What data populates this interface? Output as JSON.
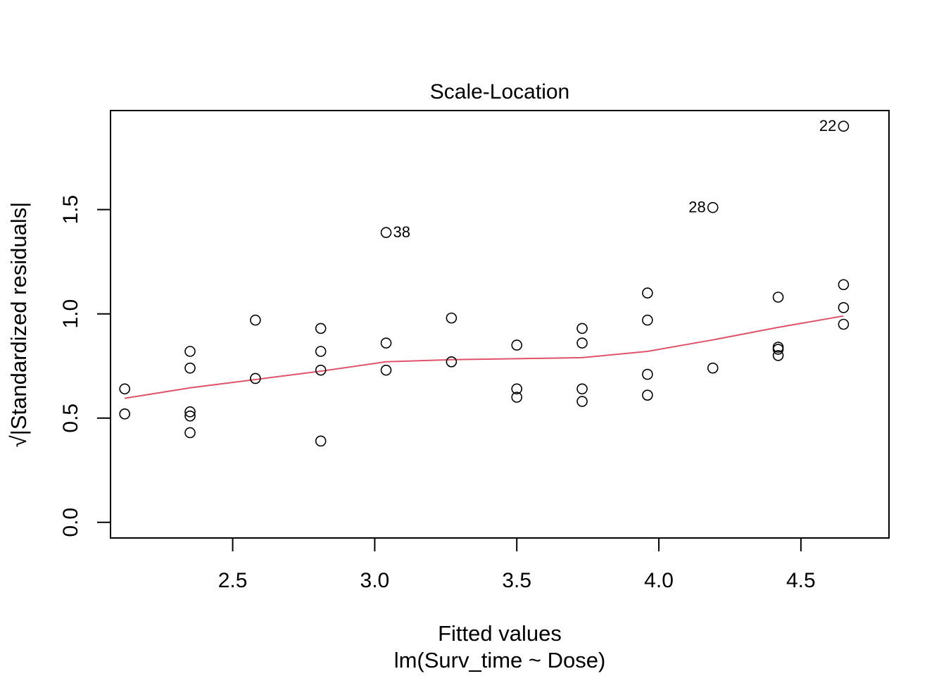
{
  "chart_data": {
    "type": "scatter",
    "title": "Scale-Location",
    "xlabel": "Fitted values",
    "xlabel2": "lm(Surv_time ~ Dose)",
    "ylabel": "√|Standardized residuals|",
    "xlim": [
      2.07,
      4.81
    ],
    "ylim": [
      -0.075,
      1.975
    ],
    "x_ticks": [
      2.5,
      3.0,
      3.5,
      4.0,
      4.5
    ],
    "x_tick_labels": [
      "2.5",
      "3.0",
      "3.5",
      "4.0",
      "4.5"
    ],
    "y_ticks": [
      0.0,
      0.5,
      1.0,
      1.5
    ],
    "y_tick_labels": [
      "0.0",
      "0.5",
      "1.0",
      "1.5"
    ],
    "grid": false,
    "colors": {
      "points": "#000000",
      "smoother": "#DF536B"
    },
    "points": [
      {
        "x": 2.12,
        "y": 0.64
      },
      {
        "x": 2.12,
        "y": 0.52
      },
      {
        "x": 2.35,
        "y": 0.82
      },
      {
        "x": 2.35,
        "y": 0.74
      },
      {
        "x": 2.35,
        "y": 0.53
      },
      {
        "x": 2.35,
        "y": 0.51
      },
      {
        "x": 2.35,
        "y": 0.43
      },
      {
        "x": 2.58,
        "y": 0.97
      },
      {
        "x": 2.58,
        "y": 0.69
      },
      {
        "x": 2.81,
        "y": 0.93
      },
      {
        "x": 2.81,
        "y": 0.82
      },
      {
        "x": 2.81,
        "y": 0.73
      },
      {
        "x": 2.81,
        "y": 0.39
      },
      {
        "x": 3.04,
        "y": 1.39,
        "label": "38"
      },
      {
        "x": 3.04,
        "y": 0.86
      },
      {
        "x": 3.04,
        "y": 0.73
      },
      {
        "x": 3.27,
        "y": 0.98
      },
      {
        "x": 3.27,
        "y": 0.77
      },
      {
        "x": 3.5,
        "y": 0.85
      },
      {
        "x": 3.5,
        "y": 0.64
      },
      {
        "x": 3.5,
        "y": 0.6
      },
      {
        "x": 3.73,
        "y": 0.93
      },
      {
        "x": 3.73,
        "y": 0.86
      },
      {
        "x": 3.73,
        "y": 0.64
      },
      {
        "x": 3.73,
        "y": 0.58
      },
      {
        "x": 3.96,
        "y": 1.1
      },
      {
        "x": 3.96,
        "y": 0.97
      },
      {
        "x": 3.96,
        "y": 0.71
      },
      {
        "x": 3.96,
        "y": 0.61
      },
      {
        "x": 4.19,
        "y": 1.51,
        "label": "28"
      },
      {
        "x": 4.19,
        "y": 0.74
      },
      {
        "x": 4.42,
        "y": 1.08
      },
      {
        "x": 4.42,
        "y": 0.84
      },
      {
        "x": 4.42,
        "y": 0.83
      },
      {
        "x": 4.42,
        "y": 0.8
      },
      {
        "x": 4.65,
        "y": 1.9,
        "label": "22"
      },
      {
        "x": 4.65,
        "y": 1.14
      },
      {
        "x": 4.65,
        "y": 1.03
      },
      {
        "x": 4.65,
        "y": 0.95
      }
    ],
    "smoother": {
      "x": [
        2.12,
        2.35,
        2.58,
        2.81,
        3.04,
        3.27,
        3.5,
        3.73,
        3.96,
        4.19,
        4.42,
        4.65
      ],
      "y": [
        0.595,
        0.645,
        0.685,
        0.725,
        0.77,
        0.78,
        0.785,
        0.79,
        0.82,
        0.875,
        0.935,
        0.99
      ]
    }
  }
}
